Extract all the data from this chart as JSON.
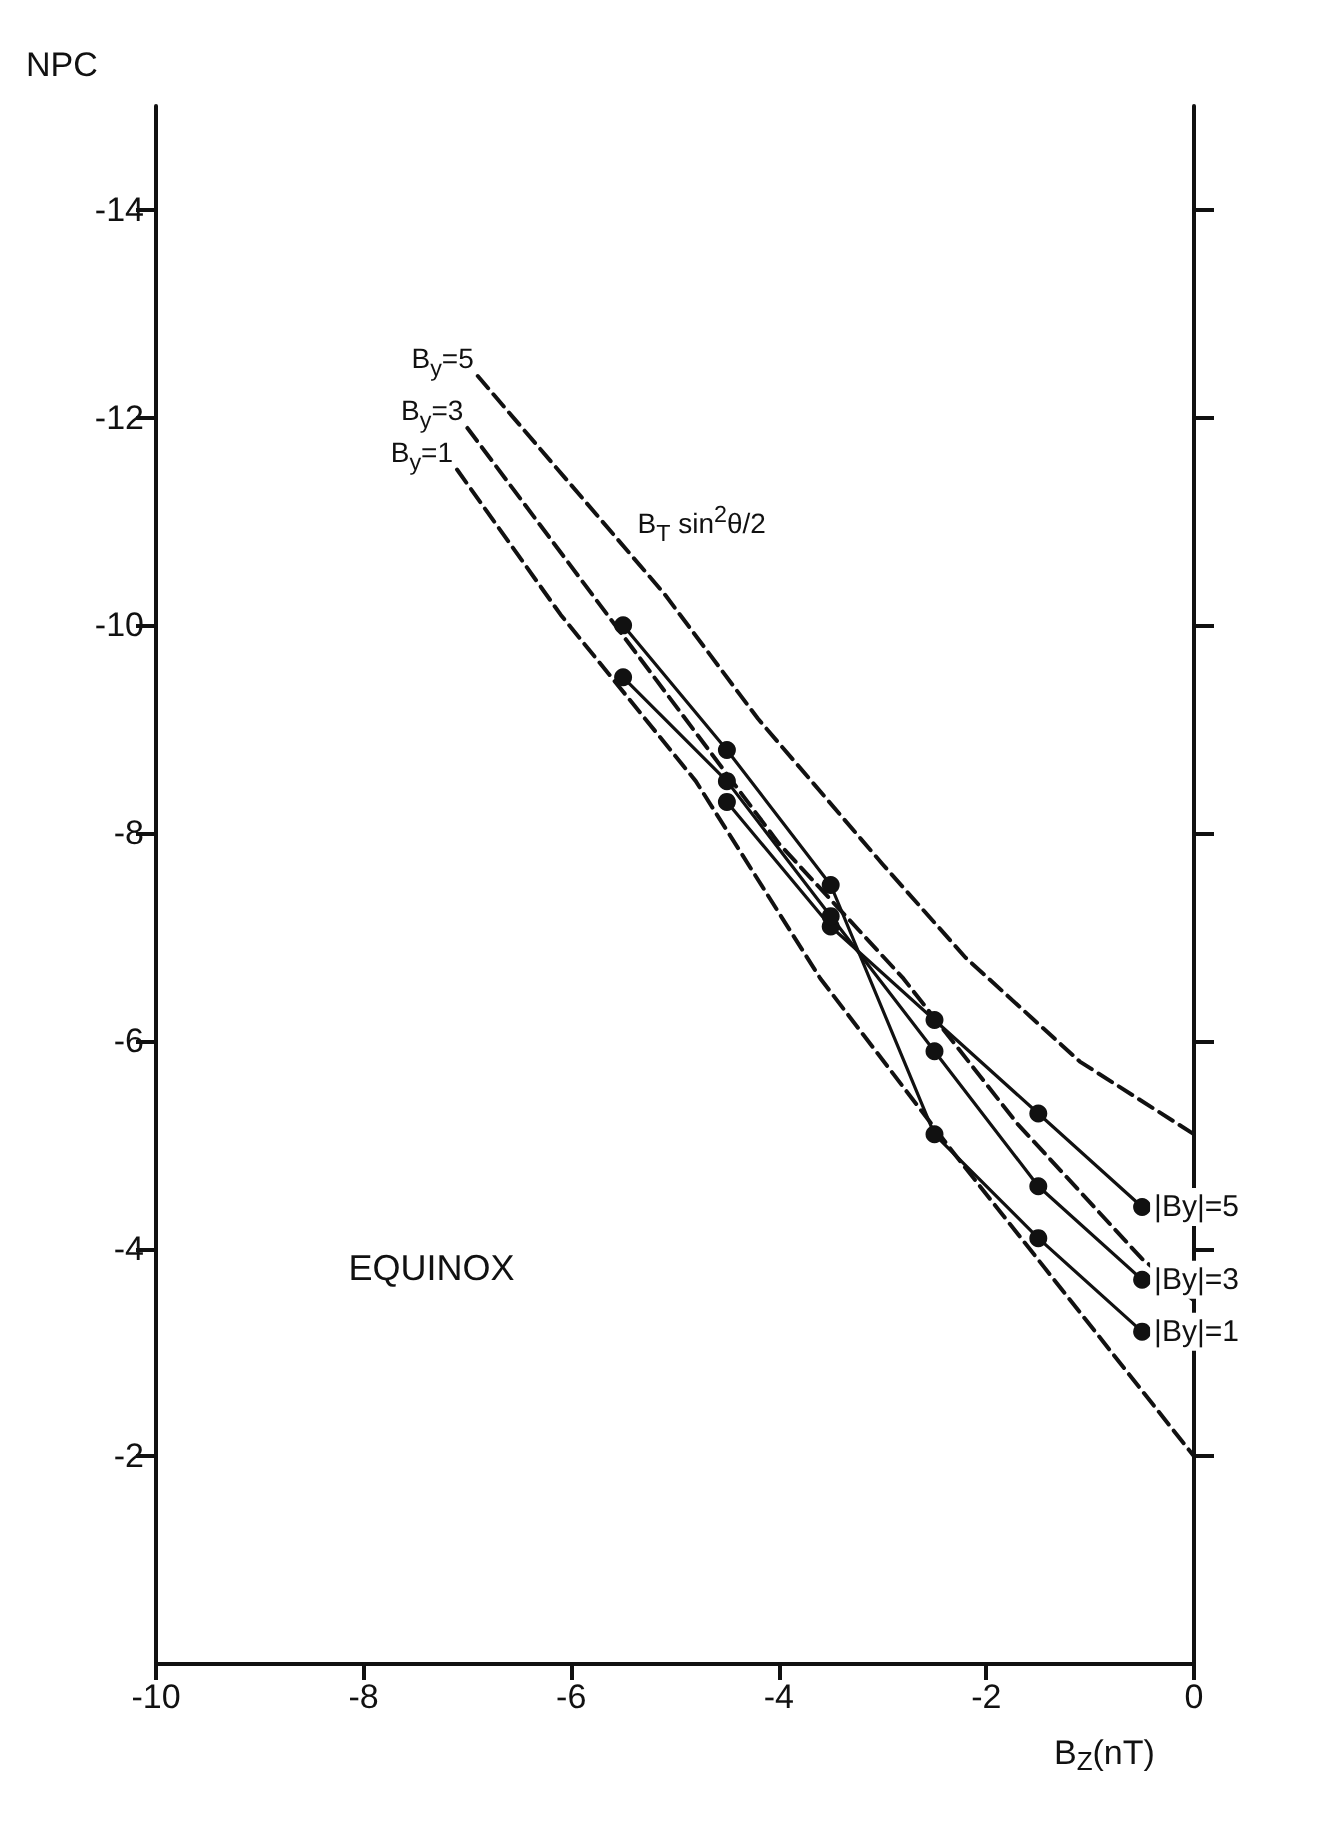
{
  "chart_data": {
    "type": "line",
    "xlabel": "B$_{Z}$(nT)",
    "ylabel": "NPC",
    "xlim": [
      -10,
      0
    ],
    "xticks": [
      -10,
      -8,
      -6,
      -4,
      -2,
      0
    ],
    "ylim": [
      0,
      -15
    ],
    "yticks": [
      -2,
      -4,
      -6,
      -8,
      -10,
      -12,
      -14
    ],
    "grid": false,
    "marker": "circle",
    "line_style": "solid",
    "x": [
      -5.5,
      -4.5,
      -3.5,
      -2.5,
      -1.5,
      -0.5
    ],
    "series": [
      {
        "name": "|By|=5",
        "color": "#111111",
        "values": [
          null,
          -8.3,
          -7.1,
          -6.2,
          -5.3,
          -4.4
        ]
      },
      {
        "name": "|By|=3",
        "color": "#111111",
        "values": [
          -9.5,
          -8.5,
          -7.2,
          -5.9,
          -4.6,
          -3.7
        ]
      },
      {
        "name": "|By|=1",
        "color": "#111111",
        "values": [
          -10.0,
          -8.8,
          -7.5,
          -5.1,
          -4.1,
          -3.2
        ]
      },
      {
        "name": "B$_{y}$=5",
        "type": "line",
        "color": "#111111",
        "marker": "none",
        "line_style": "dashed",
        "x": [
          -6.9,
          -5.1,
          -4.2,
          -3.0,
          -2.2,
          -1.1,
          0
        ],
        "values": [
          -12.4,
          -10.3,
          -9.1,
          -7.7,
          -6.8,
          -5.8,
          -5.1
        ]
      },
      {
        "name": "B$_{y}$=3",
        "type": "line",
        "color": "#111111",
        "marker": "none",
        "line_style": "dashed",
        "x": [
          -7.0,
          -5.8,
          -4.0,
          -2.8,
          -1.7,
          -0.5,
          0
        ],
        "values": [
          -11.9,
          -10.3,
          -7.9,
          -6.6,
          -5.2,
          -3.9,
          -3.5
        ]
      },
      {
        "name": "B$_{y}$=1",
        "type": "line",
        "color": "#111111",
        "marker": "none",
        "line_style": "dashed",
        "x": [
          -7.1,
          -6.1,
          -4.8,
          -3.6,
          -2.3,
          0
        ],
        "values": [
          -11.5,
          -10.1,
          -8.5,
          -6.6,
          -4.9,
          -2.0
        ]
      }
    ],
    "annotations": [
      "B$_{T}$ sin$^{2}$θ/2",
      "EQUINOX"
    ]
  }
}
